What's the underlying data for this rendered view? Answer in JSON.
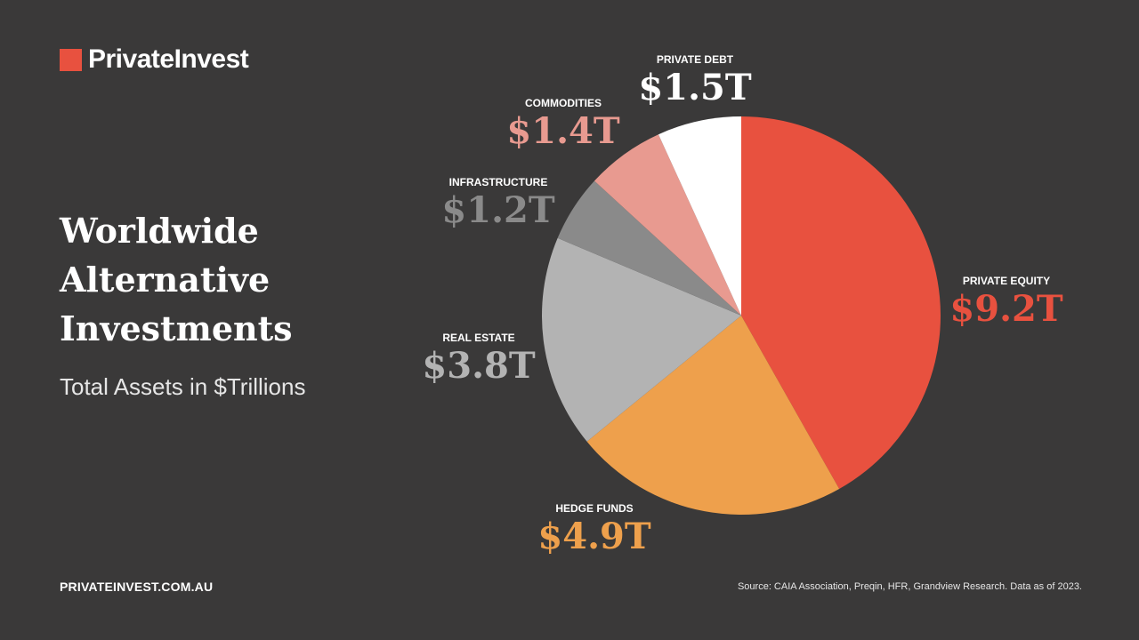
{
  "brand": {
    "name": "PrivateInvest",
    "color": "#e8513f"
  },
  "title_lines": [
    "Worldwide",
    "Alternative",
    "Investments"
  ],
  "subtitle": "Total Assets in $Trillions",
  "footer": {
    "url": "PRIVATEINVEST.COM.AU",
    "source": "Source: CAIA Association, Preqin, HFR, Grandview Research. Data as of 2023."
  },
  "chart_data": {
    "type": "pie",
    "title": "Worldwide Alternative Investments",
    "subtitle": "Total Assets in $Trillions",
    "unit": "$ Trillions",
    "start": "12 o'clock, clockwise",
    "slices": [
      {
        "label": "PRIVATE EQUITY",
        "value": 9.2,
        "display": "$9.2T",
        "color": "#e8513f",
        "label_color": "#e8513f"
      },
      {
        "label": "HEDGE FUNDS",
        "value": 4.9,
        "display": "$4.9T",
        "color": "#eea04c",
        "label_color": "#eea04c"
      },
      {
        "label": "REAL ESTATE",
        "value": 3.8,
        "display": "$3.8T",
        "color": "#b3b3b3",
        "label_color": "#b3b3b3"
      },
      {
        "label": "INFRASTRUCTURE",
        "value": 1.2,
        "display": "$1.2T",
        "color": "#8a8a8a",
        "label_color": "#8a8a8a"
      },
      {
        "label": "COMMODITIES",
        "value": 1.4,
        "display": "$1.4T",
        "color": "#e89a90",
        "label_color": "#e89a90"
      },
      {
        "label": "PRIVATE DEBT",
        "value": 1.5,
        "display": "$1.5T",
        "color": "#ffffff",
        "label_color": "#ffffff"
      }
    ]
  }
}
